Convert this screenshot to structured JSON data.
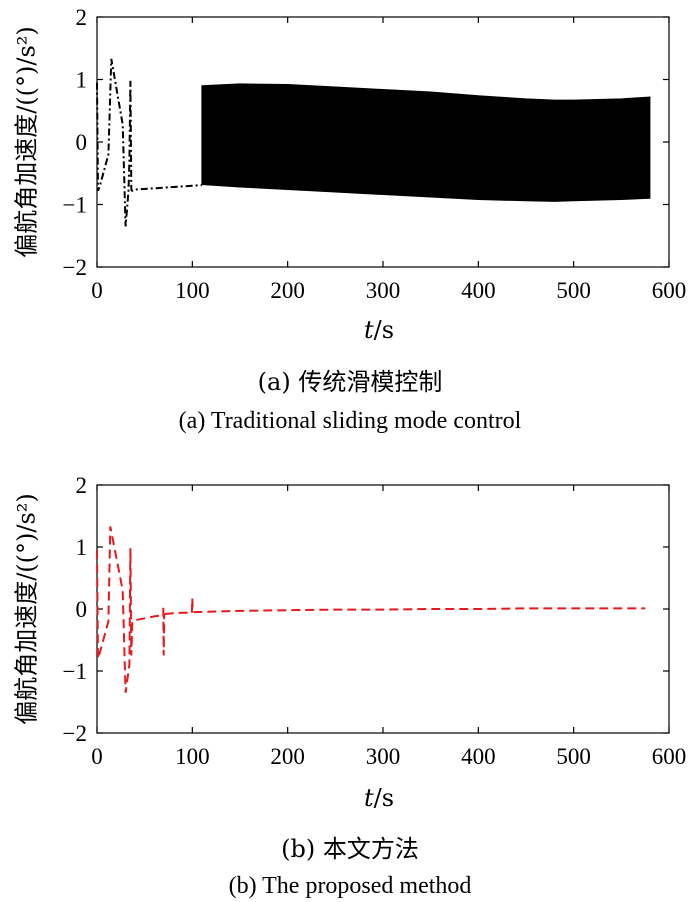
{
  "chart_data": [
    {
      "type": "line",
      "series_color": "#000000",
      "line_style": "dash-dot",
      "ylabel": "偏航角加速度/((°)/s²)",
      "xlabel": "t/s",
      "xlim": [
        0,
        600
      ],
      "ylim": [
        -2,
        2
      ],
      "x_ticks": [
        "0",
        "100",
        "200",
        "300",
        "400",
        "500",
        "600"
      ],
      "y_ticks": [
        "−2",
        "−1",
        "0",
        "1",
        "2"
      ],
      "caption_cn": "(a) 传统滑模控制",
      "caption_en": "(a) Traditional sliding mode control",
      "transient": {
        "x": [
          0,
          1,
          3,
          12,
          15,
          27,
          30,
          33,
          34,
          35,
          36,
          37,
          40,
          60,
          80,
          100,
          110
        ],
        "y": [
          0.95,
          -0.78,
          -0.7,
          -0.2,
          1.33,
          0.28,
          -1.35,
          -0.78,
          -0.3,
          0.98,
          -0.76,
          -0.78,
          -0.76,
          -0.74,
          -0.72,
          -0.7,
          -0.69
        ]
      },
      "chatter_band": {
        "x": [
          110,
          150,
          200,
          250,
          300,
          350,
          400,
          450,
          480,
          500,
          550,
          580
        ],
        "upper": [
          0.9,
          0.93,
          0.92,
          0.88,
          0.84,
          0.8,
          0.74,
          0.69,
          0.67,
          0.67,
          0.69,
          0.72
        ],
        "lower": [
          -0.68,
          -0.72,
          -0.76,
          -0.8,
          -0.84,
          -0.88,
          -0.92,
          -0.94,
          -0.95,
          -0.94,
          -0.92,
          -0.9
        ]
      }
    },
    {
      "type": "line",
      "series_color": "#e8191c",
      "line_style": "dashed",
      "ylabel": "偏航角加速度/((°)/s²)",
      "xlabel": "t/s",
      "xlim": [
        0,
        600
      ],
      "ylim": [
        -2,
        2
      ],
      "x_ticks": [
        "0",
        "100",
        "200",
        "300",
        "400",
        "500",
        "600"
      ],
      "y_ticks": [
        "−2",
        "−1",
        "0",
        "1",
        "2"
      ],
      "caption_cn": "(b) 本文方法",
      "caption_en": "(b) The proposed method",
      "segments": [
        {
          "x": [
            0,
            1,
            3,
            12,
            14,
            27,
            30,
            34,
            35,
            36,
            37,
            40,
            60,
            69
          ],
          "y": [
            0.95,
            -0.8,
            -0.7,
            -0.2,
            1.33,
            0.3,
            -1.35,
            -0.9,
            0.98,
            -0.75,
            -0.2,
            -0.18,
            -0.12,
            -0.1
          ]
        },
        {
          "x": [
            69.5,
            70,
            70.5
          ],
          "y": [
            0.02,
            -0.75,
            -0.08
          ]
        },
        {
          "x": [
            71,
            80,
            90,
            99
          ],
          "y": [
            -0.08,
            -0.07,
            -0.06,
            -0.06
          ]
        },
        {
          "x": [
            99.5,
            100,
            100.5
          ],
          "y": [
            -0.06,
            0.17,
            -0.05
          ]
        },
        {
          "x": [
            101,
            150,
            200,
            250,
            300,
            350,
            400,
            450,
            500,
            550,
            575
          ],
          "y": [
            -0.05,
            -0.03,
            -0.02,
            -0.01,
            -0.01,
            0.0,
            0.0,
            0.01,
            0.01,
            0.01,
            0.01
          ]
        }
      ]
    }
  ]
}
